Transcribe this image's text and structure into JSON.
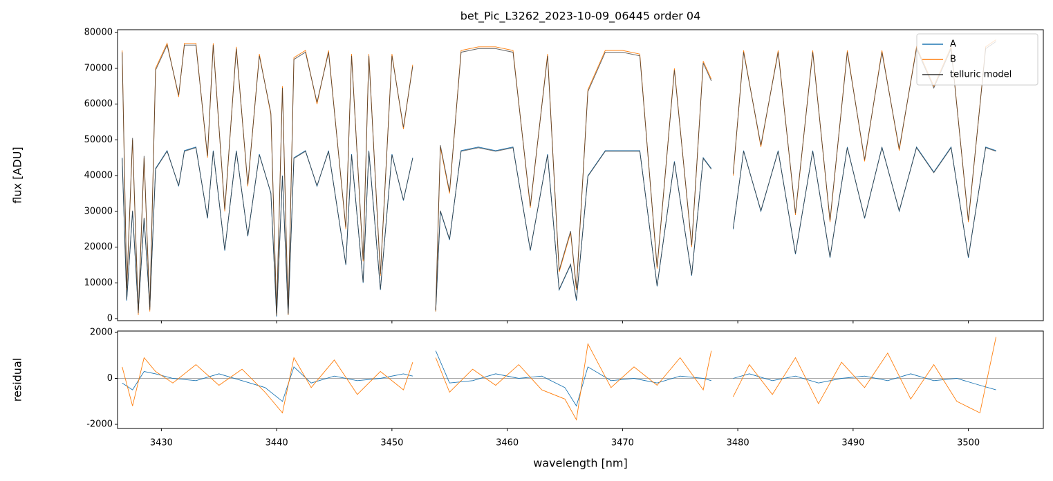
{
  "chart_data": [
    {
      "type": "line",
      "title": "bet_Pic_L3262_2023-10-09_06445  order 04",
      "ylabel": "flux [ADU]",
      "x": [
        3426.6,
        3427.0,
        3427.5,
        3428.0,
        3428.5,
        3429.0,
        3429.5,
        3430.5,
        3431.5,
        3432.0,
        3433.0,
        3434.0,
        3434.5,
        3435.5,
        3436.5,
        3437.5,
        3438.5,
        3439.5,
        3440.0,
        3440.5,
        3441.0,
        3441.5,
        3442.5,
        3443.5,
        3444.5,
        3446.0,
        3446.5,
        3447.5,
        3448.0,
        3449.0,
        3450.0,
        3451.0,
        3451.8,
        3453.0,
        3453.8,
        3454.2,
        3455.0,
        3456.0,
        3457.5,
        3459.0,
        3460.5,
        3462.0,
        3463.5,
        3464.5,
        3465.5,
        3466.0,
        3467.0,
        3468.5,
        3470.0,
        3471.5,
        3473.0,
        3474.5,
        3476.0,
        3477.0,
        3477.7,
        3478.7,
        3479.6,
        3480.5,
        3482.0,
        3483.5,
        3485.0,
        3486.5,
        3488.0,
        3489.5,
        3491.0,
        3492.5,
        3494.0,
        3495.5,
        3497.0,
        3498.5,
        3500.0,
        3501.5,
        3502.4
      ],
      "series": [
        {
          "name": "A",
          "color": "#1f77b4",
          "values": [
            45000,
            5000,
            30000,
            2000,
            28000,
            3000,
            42000,
            47000,
            37000,
            47000,
            48000,
            28000,
            47000,
            19000,
            47000,
            23000,
            46000,
            35000,
            500,
            40000,
            1000,
            45000,
            47000,
            37000,
            47000,
            15000,
            46000,
            10000,
            47000,
            8000,
            46000,
            33000,
            45000,
            null,
            2000,
            30000,
            22000,
            47000,
            48000,
            47000,
            48000,
            19000,
            46000,
            8000,
            15000,
            5000,
            40000,
            47000,
            47000,
            47000,
            9000,
            44000,
            12000,
            45000,
            42000,
            null,
            25000,
            47000,
            30000,
            47000,
            18000,
            47000,
            17000,
            48000,
            28000,
            48000,
            30000,
            48000,
            41000,
            48000,
            17000,
            48000,
            47000
          ]
        },
        {
          "name": "B",
          "color": "#ff7f0e",
          "values": [
            75000,
            8000,
            50000,
            1000,
            45000,
            2000,
            70000,
            77000,
            62000,
            77000,
            77000,
            45000,
            77000,
            30000,
            76000,
            37000,
            74000,
            57000,
            1000,
            65000,
            1000,
            73000,
            75000,
            60000,
            75000,
            25000,
            74000,
            16000,
            74000,
            12000,
            74000,
            53000,
            71000,
            null,
            2000,
            48000,
            35000,
            75000,
            76000,
            76000,
            75000,
            31000,
            74000,
            13000,
            24000,
            8000,
            64000,
            75000,
            75000,
            74000,
            14000,
            70000,
            20000,
            72000,
            67000,
            null,
            40000,
            75000,
            48000,
            75000,
            29000,
            75000,
            27000,
            75000,
            44000,
            75000,
            47000,
            76000,
            65000,
            76000,
            27000,
            76000,
            78000
          ]
        },
        {
          "name": "telluric model",
          "color": "#333333",
          "values": [
            74500,
            8500,
            50500,
            1500,
            45500,
            2500,
            69500,
            76500,
            62500,
            76500,
            76500,
            45500,
            76500,
            30500,
            75500,
            37500,
            73500,
            57500,
            1500,
            64500,
            1500,
            72500,
            74500,
            60500,
            74500,
            25500,
            73500,
            16500,
            73500,
            12500,
            73500,
            53500,
            70500,
            null,
            2500,
            48500,
            35500,
            74500,
            75500,
            75500,
            74500,
            31500,
            73500,
            13500,
            24500,
            8500,
            63500,
            74500,
            74500,
            73500,
            14500,
            69500,
            20500,
            71500,
            66500,
            null,
            40500,
            74500,
            48500,
            74500,
            29500,
            74500,
            27500,
            74500,
            44500,
            74500,
            47500,
            75500,
            64500,
            75500,
            27500,
            75500,
            77500
          ]
        },
        {
          "name": "telluric model",
          "color": "#333333",
          "values": [
            44800,
            5300,
            30200,
            2300,
            28200,
            3300,
            41800,
            46800,
            37200,
            46800,
            47800,
            28200,
            46800,
            19200,
            46800,
            23200,
            45800,
            35200,
            800,
            39800,
            1300,
            44800,
            46800,
            37200,
            46800,
            15200,
            45800,
            10200,
            46800,
            8200,
            45800,
            33200,
            44800,
            null,
            2300,
            30200,
            22200,
            46800,
            47800,
            46800,
            47800,
            19200,
            45800,
            8200,
            15200,
            5300,
            39800,
            46800,
            46800,
            46800,
            9200,
            43800,
            12200,
            44800,
            41800,
            null,
            25200,
            46800,
            30200,
            46800,
            18200,
            46800,
            17200,
            47800,
            28200,
            47800,
            30200,
            47800,
            40800,
            47800,
            17200,
            47800,
            46800
          ]
        }
      ],
      "xlim": [
        3426.2,
        3506.5
      ],
      "ylim": [
        -580,
        80800
      ],
      "xticks": [
        3430,
        3440,
        3450,
        3460,
        3470,
        3480,
        3490,
        3500
      ],
      "yticks": [
        0,
        10000,
        20000,
        30000,
        40000,
        50000,
        60000,
        70000,
        80000
      ],
      "legend": "upper right"
    },
    {
      "type": "line",
      "ylabel": "residual",
      "xlabel": "wavelength [nm]",
      "x": [
        3426.6,
        3427.5,
        3428.5,
        3429.5,
        3431,
        3433,
        3435,
        3437,
        3439,
        3440.5,
        3441.5,
        3443,
        3445,
        3447,
        3449,
        3451,
        3451.8,
        3453,
        3453.8,
        3455,
        3457,
        3459,
        3461,
        3463,
        3465,
        3466,
        3467,
        3469,
        3471,
        3473,
        3475,
        3477,
        3477.7,
        3478.7,
        3479.6,
        3481,
        3483,
        3485,
        3487,
        3489,
        3491,
        3493,
        3495,
        3497,
        3499,
        3501,
        3502.4
      ],
      "series": [
        {
          "name": "A",
          "color": "#1f77b4",
          "values": [
            -200,
            -500,
            300,
            200,
            0,
            -100,
            200,
            -100,
            -400,
            -1000,
            500,
            -200,
            100,
            -100,
            0,
            200,
            100,
            null,
            1200,
            -200,
            -100,
            200,
            0,
            100,
            -400,
            -1200,
            500,
            -100,
            0,
            -200,
            100,
            0,
            -100,
            null,
            0,
            200,
            -100,
            100,
            -200,
            0,
            100,
            -100,
            200,
            -100,
            0,
            -300,
            -500
          ]
        },
        {
          "name": "B",
          "color": "#ff7f0e",
          "values": [
            500,
            -1200,
            900,
            300,
            -200,
            600,
            -300,
            400,
            -600,
            -1500,
            900,
            -400,
            800,
            -700,
            300,
            -500,
            700,
            null,
            900,
            -600,
            400,
            -300,
            600,
            -500,
            -900,
            -1800,
            1500,
            -400,
            500,
            -300,
            900,
            -500,
            1200,
            null,
            -800,
            600,
            -700,
            900,
            -1100,
            700,
            -400,
            1100,
            -900,
            600,
            -1000,
            -1500,
            1800
          ]
        }
      ],
      "axhline": 0,
      "xlim": [
        3426.2,
        3506.5
      ],
      "ylim": [
        -2180,
        2060
      ],
      "xticks": [
        3430,
        3440,
        3450,
        3460,
        3470,
        3480,
        3490,
        3500
      ],
      "yticks": [
        -2000,
        0,
        2000
      ]
    }
  ]
}
